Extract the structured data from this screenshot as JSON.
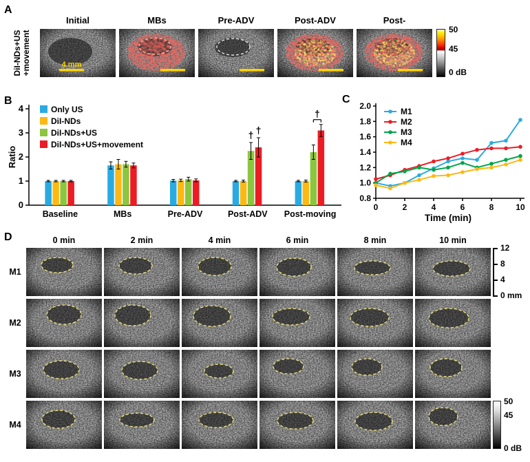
{
  "panelA": {
    "label": "A",
    "row_label_line1": "DiI-NDs+US",
    "row_label_line2": "+movement",
    "columns": [
      "Initial",
      "MBs",
      "Pre-ADV",
      "Post-ADV",
      "Post-"
    ],
    "scale_label": "4 mm",
    "colorbar_labels": [
      "50",
      "45",
      "0 dB"
    ]
  },
  "panelB": {
    "label": "B"
  },
  "panelC": {
    "label": "C"
  },
  "panelD": {
    "label": "D",
    "columns": [
      "0 min",
      "2 min",
      "4 min",
      "6 min",
      "8 min",
      "10 min"
    ],
    "rows": [
      "M1",
      "M2",
      "M3",
      "M4"
    ],
    "depth_labels": [
      "12",
      "8",
      "4",
      "0 mm"
    ],
    "colorbar_labels": [
      "50",
      "45",
      "0 dB"
    ]
  },
  "chart_data": [
    {
      "type": "bar",
      "title": "",
      "categories": [
        "Baseline",
        "MBs",
        "Pre-ADV",
        "Post-ADV",
        "Post-moving"
      ],
      "series": [
        {
          "name": "Only US",
          "color": "#29ABE2",
          "values": [
            1.0,
            1.65,
            1.02,
            1.0,
            1.0
          ],
          "errors": [
            0.03,
            0.15,
            0.05,
            0.03,
            0.03
          ]
        },
        {
          "name": "DiI-NDs",
          "color": "#FDB913",
          "values": [
            1.0,
            1.7,
            1.03,
            1.0,
            1.0
          ],
          "errors": [
            0.03,
            0.2,
            0.05,
            0.04,
            0.04
          ]
        },
        {
          "name": "DiI-NDs+US",
          "color": "#8CC63E",
          "values": [
            1.0,
            1.7,
            1.08,
            2.25,
            2.2
          ],
          "errors": [
            0.03,
            0.12,
            0.08,
            0.35,
            0.3
          ]
        },
        {
          "name": "DiI-NDs+US+movement",
          "color": "#EC1C24",
          "values": [
            1.0,
            1.65,
            1.03,
            2.4,
            3.1
          ],
          "errors": [
            0.03,
            0.1,
            0.06,
            0.4,
            0.25
          ]
        }
      ],
      "xlabel": "",
      "ylabel": "Ratio",
      "ylim": [
        0,
        4
      ],
      "yticks": [
        0,
        1,
        2,
        3,
        4
      ],
      "legend_position": "top-left",
      "annotations": [
        {
          "text": "†",
          "category": "Post-ADV",
          "series": "DiI-NDs+US",
          "bracket": false
        },
        {
          "text": "†",
          "category": "Post-ADV",
          "series": "DiI-NDs+US+movement",
          "bracket": false
        },
        {
          "text": "†",
          "category": "Post-moving",
          "series": "DiI-NDs+US+movement",
          "bracket": true
        }
      ]
    },
    {
      "type": "line",
      "title": "",
      "x": [
        0,
        1,
        2,
        3,
        4,
        5,
        6,
        7,
        8,
        9,
        10
      ],
      "series": [
        {
          "name": "M1",
          "color": "#29ABE2",
          "values": [
            1.0,
            0.96,
            1.0,
            1.1,
            1.19,
            1.28,
            1.32,
            1.3,
            1.52,
            1.55,
            1.82
          ]
        },
        {
          "name": "M2",
          "color": "#EC1C24",
          "values": [
            1.05,
            1.1,
            1.17,
            1.22,
            1.28,
            1.32,
            1.38,
            1.43,
            1.45,
            1.45,
            1.47
          ]
        },
        {
          "name": "M3",
          "color": "#00A44A",
          "values": [
            1.0,
            1.12,
            1.15,
            1.2,
            1.17,
            1.2,
            1.26,
            1.2,
            1.25,
            1.3,
            1.35
          ]
        },
        {
          "name": "M4",
          "color": "#FDB913",
          "values": [
            0.97,
            0.93,
            1.0,
            1.04,
            1.09,
            1.1,
            1.14,
            1.18,
            1.2,
            1.24,
            1.3
          ]
        }
      ],
      "xlabel": "Time (min)",
      "ylabel": "",
      "xlim": [
        0,
        10
      ],
      "ylim": [
        0.8,
        2.0
      ],
      "xticks": [
        0,
        2,
        4,
        6,
        8,
        10
      ],
      "yticks": [
        0.8,
        1.0,
        1.2,
        1.4,
        1.6,
        1.8,
        2.0
      ],
      "legend_position": "top-left"
    }
  ]
}
